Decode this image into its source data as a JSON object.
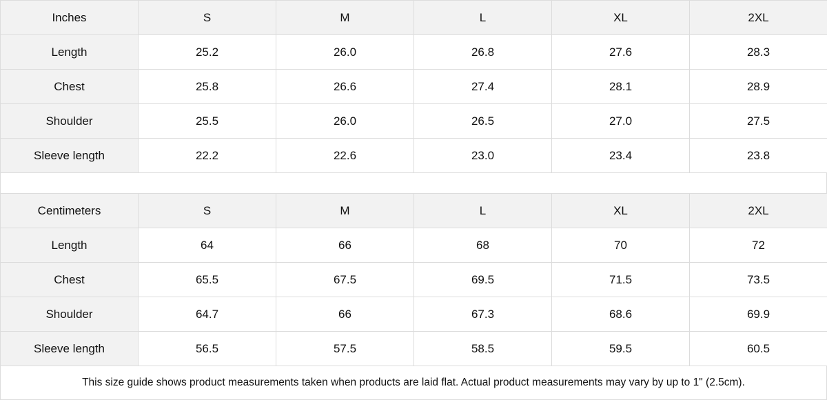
{
  "colors": {
    "header_bg": "#f2f2f2",
    "border": "#dcdcdc",
    "cell_bg": "#ffffff"
  },
  "tables": [
    {
      "unit": "Inches",
      "sizes": [
        "S",
        "M",
        "L",
        "XL",
        "2XL"
      ],
      "rows": [
        {
          "label": "Length",
          "values": [
            "25.2",
            "26.0",
            "26.8",
            "27.6",
            "28.3"
          ]
        },
        {
          "label": "Chest",
          "values": [
            "25.8",
            "26.6",
            "27.4",
            "28.1",
            "28.9"
          ]
        },
        {
          "label": "Shoulder",
          "values": [
            "25.5",
            "26.0",
            "26.5",
            "27.0",
            "27.5"
          ]
        },
        {
          "label": "Sleeve length",
          "values": [
            "22.2",
            "22.6",
            "23.0",
            "23.4",
            "23.8"
          ]
        }
      ]
    },
    {
      "unit": "Centimeters",
      "sizes": [
        "S",
        "M",
        "L",
        "XL",
        "2XL"
      ],
      "rows": [
        {
          "label": "Length",
          "values": [
            "64",
            "66",
            "68",
            "70",
            "72"
          ]
        },
        {
          "label": "Chest",
          "values": [
            "65.5",
            "67.5",
            "69.5",
            "71.5",
            "73.5"
          ]
        },
        {
          "label": "Shoulder",
          "values": [
            "64.7",
            "66",
            "67.3",
            "68.6",
            "69.9"
          ]
        },
        {
          "label": "Sleeve length",
          "values": [
            "56.5",
            "57.5",
            "58.5",
            "59.5",
            "60.5"
          ]
        }
      ]
    }
  ],
  "footnote": "This size guide shows product measurements taken when products are laid flat.  Actual product measurements may vary by up to 1\" (2.5cm)."
}
